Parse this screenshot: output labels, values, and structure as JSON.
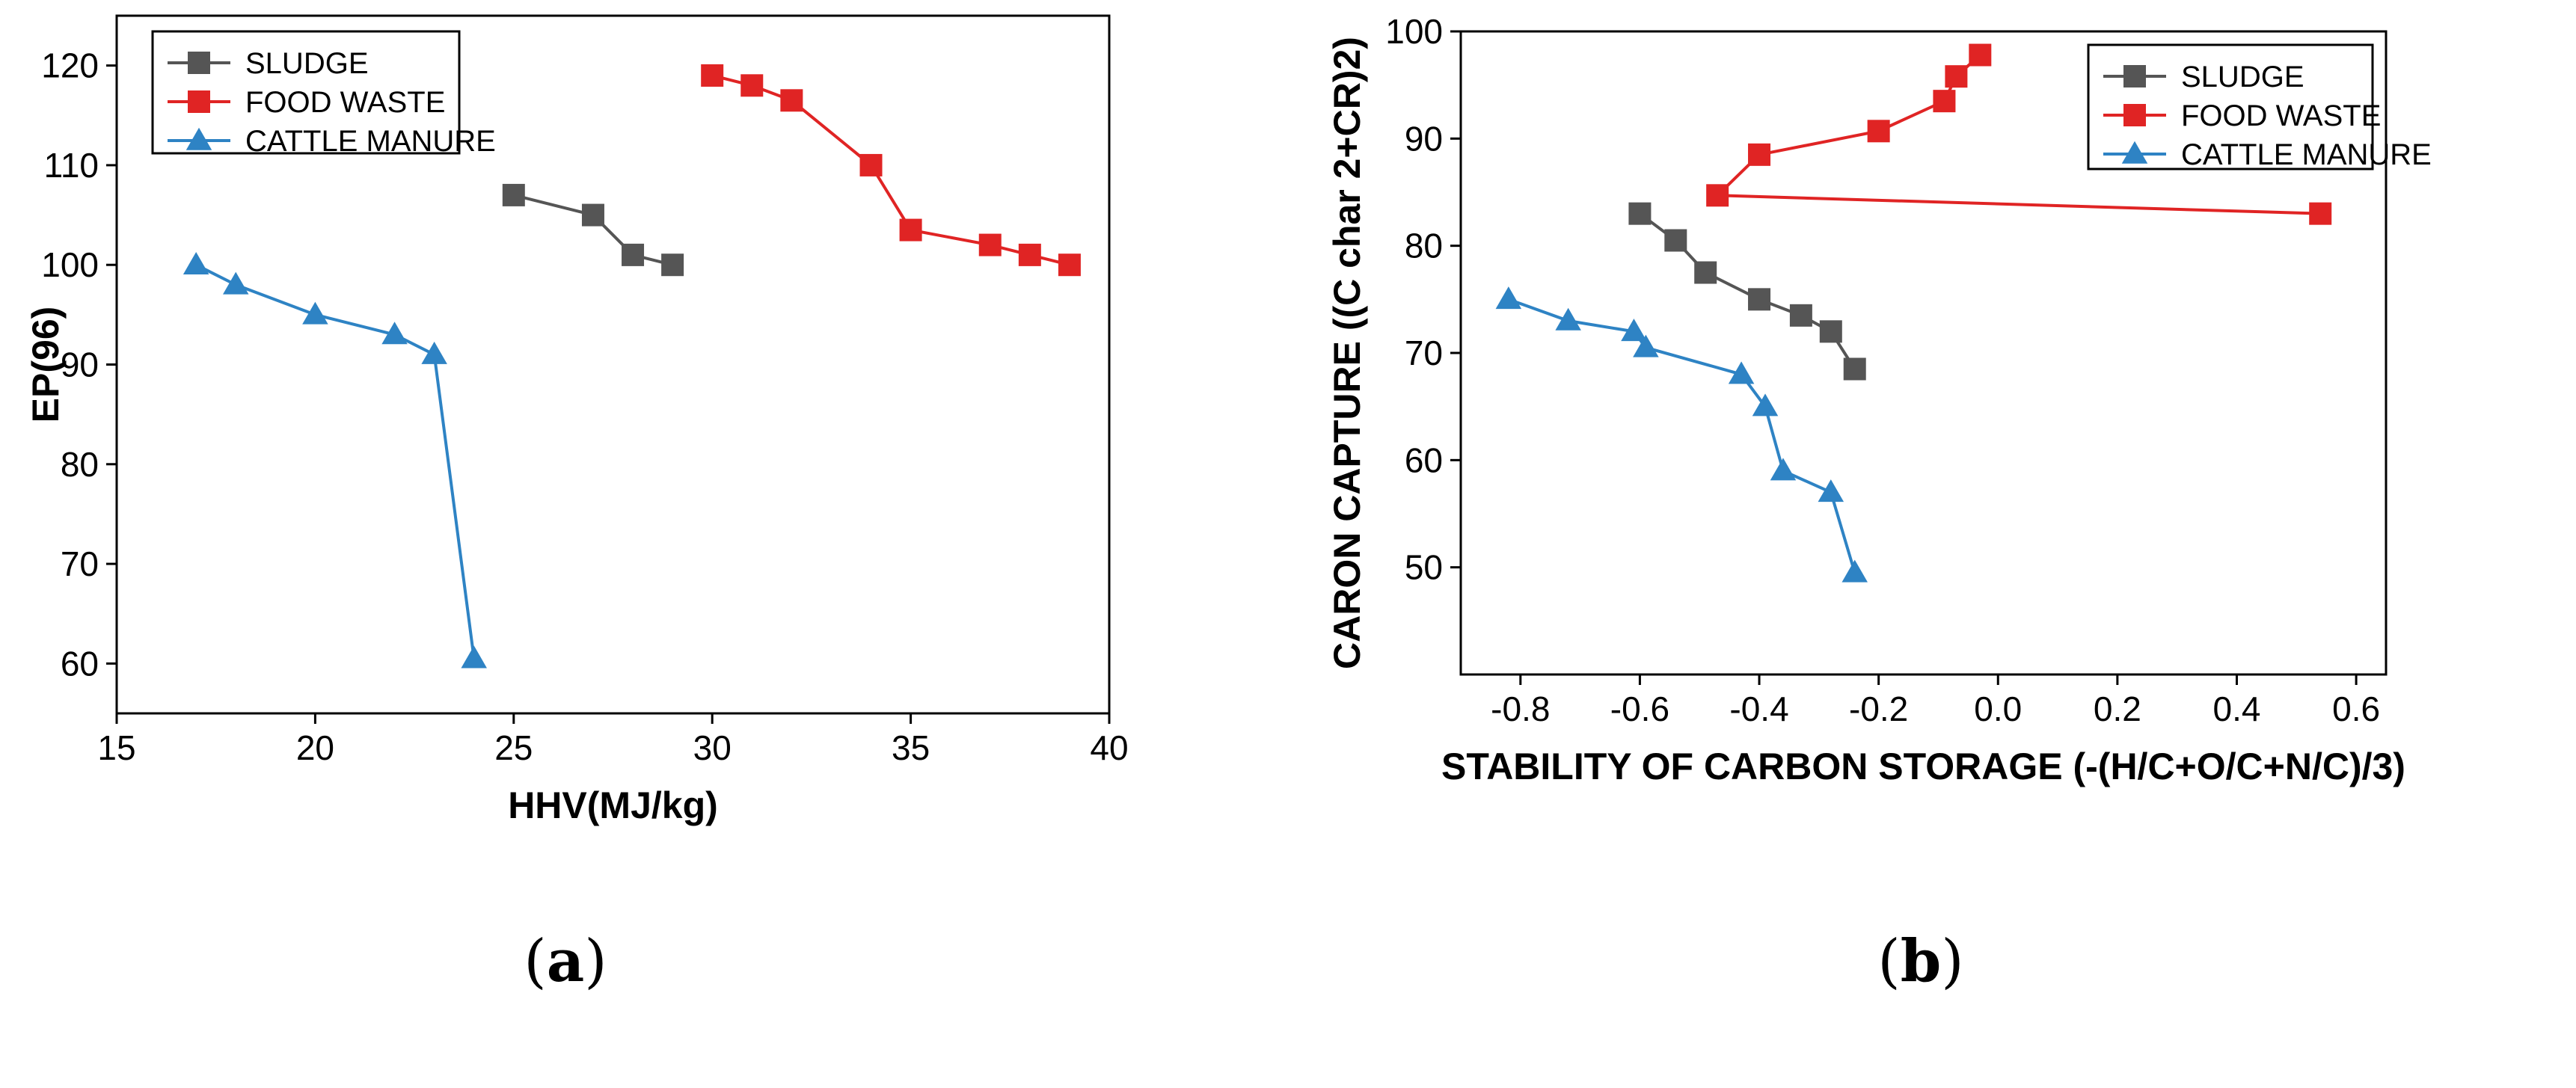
{
  "chart_data": [
    {
      "id": "a",
      "type": "line",
      "panel_label": "a",
      "xlabel": "HHV(MJ/kg)",
      "ylabel": "EP(96)",
      "xlim": [
        15,
        40
      ],
      "ylim": [
        55,
        125
      ],
      "xticks": [
        15,
        20,
        25,
        30,
        35,
        40
      ],
      "yticks": [
        60,
        70,
        80,
        90,
        100,
        110,
        120
      ],
      "legend_position": "top-left",
      "series": [
        {
          "name": "SLUDGE",
          "marker": "square",
          "color": "#555555",
          "x": [
            25,
            27,
            28,
            29
          ],
          "y": [
            107,
            105,
            101,
            100
          ]
        },
        {
          "name": "FOOD WASTE",
          "marker": "square",
          "color": "#e02424",
          "x": [
            30,
            31,
            32,
            34,
            35,
            37,
            38,
            39
          ],
          "y": [
            119,
            118,
            116.5,
            110,
            103.5,
            102,
            101,
            100
          ]
        },
        {
          "name": "CATTLE MANURE",
          "marker": "triangle",
          "color": "#2e83c4",
          "x": [
            17,
            18,
            20,
            22,
            23,
            24
          ],
          "y": [
            100,
            98,
            95,
            93,
            91,
            60.5
          ]
        }
      ]
    },
    {
      "id": "b",
      "type": "line",
      "panel_label": "b",
      "xlabel": "STABILITY OF CARBON STORAGE (-(H/C+O/C+N/C)/3)",
      "ylabel": "CARON CAPTURE ((C char 2+CR)2)",
      "xlim": [
        -0.9,
        0.65
      ],
      "ylim": [
        40,
        100
      ],
      "xticks": [
        -0.8,
        -0.6,
        -0.4,
        -0.2,
        0.0,
        0.2,
        0.4,
        0.6
      ],
      "xtick_labels": [
        "-0.8",
        "-0.6",
        "-0.4",
        "-0.2",
        "0.0",
        "0.2",
        "0.4",
        "0.6"
      ],
      "yticks": [
        50,
        60,
        70,
        80,
        90,
        100
      ],
      "legend_position": "top-right",
      "series": [
        {
          "name": "SLUDGE",
          "marker": "square",
          "color": "#555555",
          "x": [
            -0.6,
            -0.54,
            -0.49,
            -0.4,
            -0.33,
            -0.28,
            -0.24
          ],
          "y": [
            83,
            80.5,
            77.5,
            75,
            73.5,
            72,
            68.5
          ]
        },
        {
          "name": "FOOD WASTE",
          "marker": "square",
          "color": "#e02424",
          "x": [
            0.54,
            -0.47,
            -0.4,
            -0.2,
            -0.09,
            -0.07,
            -0.03
          ],
          "y": [
            83,
            84.7,
            88.5,
            90.7,
            93.5,
            95.8,
            97.8
          ]
        },
        {
          "name": "CATTLE MANURE",
          "marker": "triangle",
          "color": "#2e83c4",
          "x": [
            -0.82,
            -0.72,
            -0.61,
            -0.59,
            -0.43,
            -0.39,
            -0.36,
            -0.28,
            -0.24
          ],
          "y": [
            75,
            73,
            72,
            70.5,
            68,
            65,
            59,
            57,
            49.5
          ]
        }
      ]
    }
  ]
}
